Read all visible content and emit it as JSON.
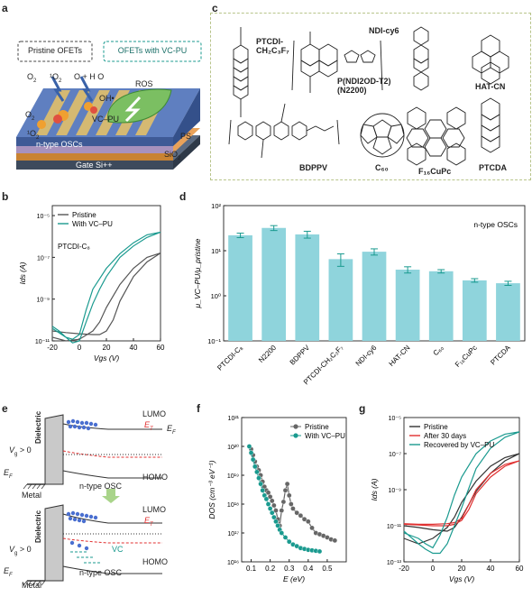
{
  "panel_labels": {
    "a": "a",
    "b": "b",
    "c": "c",
    "d": "d",
    "e": "e",
    "f": "f",
    "g": "g"
  },
  "panel_a": {
    "pristine_box": "Pristine OFETs",
    "vcpu_box": "OFETs with VC-PU",
    "o2_a": "O",
    "o2_b": "O",
    "singlet_o2": "¹O",
    "o2_h2o": "O  + H O",
    "oh": "OH•",
    "ros": "ROS",
    "vcpu": "VC–PU",
    "o2_left": "O",
    "singlet_left": "¹O",
    "ps": "PS",
    "ntype": "n-type OSCs",
    "sio2": "SiO",
    "gate": "Gate Si++"
  },
  "panel_c": {
    "ptcdi_name": "PTCDI-\nCH₂C₃F₇",
    "n2200_name": "P(NDI2OD-T2)\n(N2200)",
    "ndicy6": "NDI-cy6",
    "hatcn": "HAT-CN",
    "bdppv": "BDPPV",
    "c60": "C₆₀",
    "f16cupc": "F₁₆CuPc",
    "ptcda": "PTCDA"
  },
  "chart_data": [
    {
      "id": "b",
      "type": "line",
      "xlabel": "V_gs (V)",
      "ylabel": "I_ds (A)",
      "annotation": "PTCDI-C₈",
      "xlim": [
        -20,
        60
      ],
      "xticks": [
        "-20",
        "0",
        "20",
        "40",
        "60"
      ],
      "ylog": true,
      "ylim": [
        1e-11,
        3e-05
      ],
      "yticks": [
        "10⁻¹¹",
        "10⁻⁹",
        "10⁻⁷",
        "10⁻⁵"
      ],
      "legend": "top-left",
      "series": [
        {
          "name": "Pristine",
          "color": "#555555",
          "x": [
            -20,
            -10,
            0,
            10,
            15,
            20,
            25,
            30,
            40,
            50,
            60,
            50,
            40,
            30,
            20,
            15,
            10,
            0,
            -10,
            -20
          ],
          "y": [
            3e-11,
            2.5e-11,
            2.2e-11,
            2e-11,
            2e-11,
            3e-11,
            1e-10,
            8e-10,
            1.2e-08,
            6e-08,
            1.6e-07,
            1e-07,
            3e-08,
            5e-09,
            4e-10,
            8e-11,
            3e-11,
            1.2e-11,
            1e-11,
            1.5e-11
          ]
        },
        {
          "name": "With VC–PU",
          "color": "#1a9a8f",
          "x": [
            -20,
            -15,
            -10,
            -5,
            0,
            5,
            10,
            15,
            20,
            30,
            40,
            50,
            60,
            50,
            40,
            30,
            20,
            10,
            5,
            0,
            -5,
            -10,
            -20
          ],
          "y": [
            5e-11,
            3e-11,
            1.5e-11,
            8e-12,
            1e-11,
            8e-11,
            6e-10,
            3e-09,
            1.2e-08,
            1e-07,
            3.5e-07,
            9e-07,
            1.6e-06,
            1.2e-06,
            5e-07,
            1.5e-07,
            3e-08,
            3e-09,
            3e-10,
            2e-11,
            1.2e-11,
            1.5e-11,
            4e-11
          ]
        }
      ]
    },
    {
      "id": "d",
      "type": "bar",
      "annotation": "n-type OSCs",
      "ylabel": "μ_VC–PU/μ_pristine",
      "ylog": true,
      "ylim": [
        0.1,
        100
      ],
      "yticks": [
        "10⁻¹",
        "10⁰",
        "10¹",
        "10²"
      ],
      "categories": [
        "PTCDI-C₈",
        "N2200",
        "BDPPV",
        "PTCDI-CH₂C₃F₇",
        "NDI-cy6",
        "HAT-CN",
        "C₆₀",
        "F₁₆CuPc",
        "PTCDA"
      ],
      "values": [
        22,
        32,
        23,
        6.5,
        9.5,
        3.8,
        3.5,
        2.2,
        1.9
      ],
      "errors": [
        2.5,
        4,
        4,
        2,
        1.5,
        0.6,
        0.3,
        0.2,
        0.2
      ],
      "bar_color": "#8fd4dc",
      "err_color": "#1a9a8f"
    },
    {
      "id": "f",
      "type": "line",
      "xlabel": "E (eV)",
      "ylabel": "DOS (cm⁻³ eV⁻¹)",
      "xlim": [
        0.05,
        0.6
      ],
      "xticks": [
        "0.1",
        "0.2",
        "0.3",
        "0.4",
        "0.5"
      ],
      "ylog": true,
      "ylim": [
        1e+16,
        1e+21
      ],
      "yticks": [
        "10¹⁶",
        "10¹⁷",
        "10¹⁸",
        "10¹⁹",
        "10²⁰",
        "10²¹"
      ],
      "legend": "top-right",
      "series": [
        {
          "name": "Pristine",
          "color": "#666666",
          "x": [
            0.09,
            0.1,
            0.11,
            0.12,
            0.13,
            0.14,
            0.15,
            0.16,
            0.17,
            0.18,
            0.19,
            0.2,
            0.21,
            0.22,
            0.23,
            0.24,
            0.25,
            0.26,
            0.27,
            0.28,
            0.29,
            0.3,
            0.31,
            0.32,
            0.34,
            0.36,
            0.38,
            0.4,
            0.42,
            0.44,
            0.46,
            0.48,
            0.5,
            0.52,
            0.54
          ],
          "y": [
            1e+20,
            8e+19,
            5e+19,
            3e+19,
            2e+19,
            1.5e+19,
            1e+19,
            6e+18,
            4e+18,
            3e+18,
            2.5e+18,
            1.8e+18,
            1.3e+18,
            9e+17,
            6e+17,
            3e+17,
            1.8e+17,
            6e+17,
            1.2e+18,
            3e+18,
            5e+18,
            2e+18,
            1e+18,
            7e+17,
            5e+17,
            4e+17,
            3e+17,
            2.5e+17,
            1.5e+17,
            1e+17,
            9e+16,
            8e+16,
            7e+16,
            6e+16,
            5.5e+16
          ]
        },
        {
          "name": "With VC–PU",
          "color": "#1a9a8f",
          "x": [
            0.09,
            0.1,
            0.11,
            0.12,
            0.13,
            0.14,
            0.15,
            0.16,
            0.17,
            0.18,
            0.19,
            0.2,
            0.21,
            0.22,
            0.23,
            0.24,
            0.25,
            0.26,
            0.28,
            0.3,
            0.32,
            0.34,
            0.36,
            0.38,
            0.4,
            0.42,
            0.44,
            0.46
          ],
          "y": [
            1e+20,
            6e+19,
            3.5e+19,
            2e+19,
            1.3e+19,
            8e+18,
            5e+18,
            3e+18,
            2e+18,
            1.5e+18,
            1e+18,
            7e+17,
            5e+17,
            3.5e+17,
            2.5e+17,
            1.8e+17,
            1.3e+17,
            1e+17,
            7e+16,
            5e+16,
            4e+16,
            3.5e+16,
            3e+16,
            2.8e+16,
            2.6e+16,
            2.5e+16,
            2.4e+16,
            2.3e+16
          ]
        }
      ]
    },
    {
      "id": "g",
      "type": "line",
      "xlabel": "V_gs (V)",
      "ylabel": "I_ds (A)",
      "xlim": [
        -20,
        60
      ],
      "xticks": [
        "-20",
        "0",
        "20",
        "40",
        "60"
      ],
      "ylog": true,
      "ylim": [
        1e-13,
        1e-05
      ],
      "yticks": [
        "10⁻¹³",
        "10⁻¹¹",
        "10⁻⁹",
        "10⁻⁷",
        "10⁻⁵"
      ],
      "legend": "top-left",
      "series": [
        {
          "name": "Pristine",
          "color": "#333333",
          "x": [
            -20,
            -10,
            0,
            10,
            15,
            20,
            30,
            40,
            50,
            60,
            50,
            40,
            30,
            20,
            15,
            10,
            0,
            -10,
            -20
          ],
          "y": [
            1e-11,
            8e-12,
            6e-12,
            5e-12,
            8e-12,
            3e-11,
            8e-10,
            8e-09,
            4e-08,
            1e-07,
            6e-08,
            2e-08,
            3e-09,
            2e-10,
            3e-11,
            8e-12,
            2e-12,
            1e-12,
            2e-12
          ]
        },
        {
          "name": "After 30 days",
          "color": "#e03030",
          "x": [
            -20,
            -10,
            0,
            10,
            15,
            20,
            25,
            30,
            40,
            50,
            60,
            50,
            40,
            30,
            25,
            20,
            15,
            10,
            0,
            -10,
            -20
          ],
          "y": [
            1.2e-11,
            1.1e-11,
            1e-11,
            1e-11,
            1.2e-11,
            2e-11,
            8e-11,
            6e-10,
            5e-09,
            2e-08,
            4e-08,
            2.5e-08,
            8e-09,
            1e-09,
            1.5e-10,
            2.5e-11,
            1.5e-11,
            1.3e-11,
            1.2e-11,
            1.2e-11,
            1.3e-11
          ]
        },
        {
          "name": "Recovered by VC–PU",
          "color": "#1a9a8f",
          "x": [
            -20,
            -10,
            -5,
            0,
            5,
            10,
            15,
            20,
            30,
            40,
            50,
            60,
            50,
            40,
            30,
            20,
            15,
            10,
            5,
            0,
            -5,
            -10,
            -20
          ],
          "y": [
            5e-12,
            1e-12,
            5e-13,
            3e-13,
            3e-13,
            1e-12,
            1e-11,
            1e-10,
            1.5e-08,
            2e-07,
            8e-07,
            1.6e-06,
            1.2e-06,
            5e-07,
            1e-07,
            5e-09,
            5e-10,
            3e-11,
            3e-12,
            6e-13,
            1e-12,
            2e-12,
            4e-12
          ]
        }
      ]
    }
  ],
  "panel_e": {
    "lumo": "LUMO",
    "homo": "HOMO",
    "et": "E",
    "ef": "E",
    "vg": "V",
    "gt0": " > 0",
    "dielectric": "Dielectric",
    "metal": "Metal",
    "ntype_osc": "n-type OSC",
    "vc": "VC"
  }
}
